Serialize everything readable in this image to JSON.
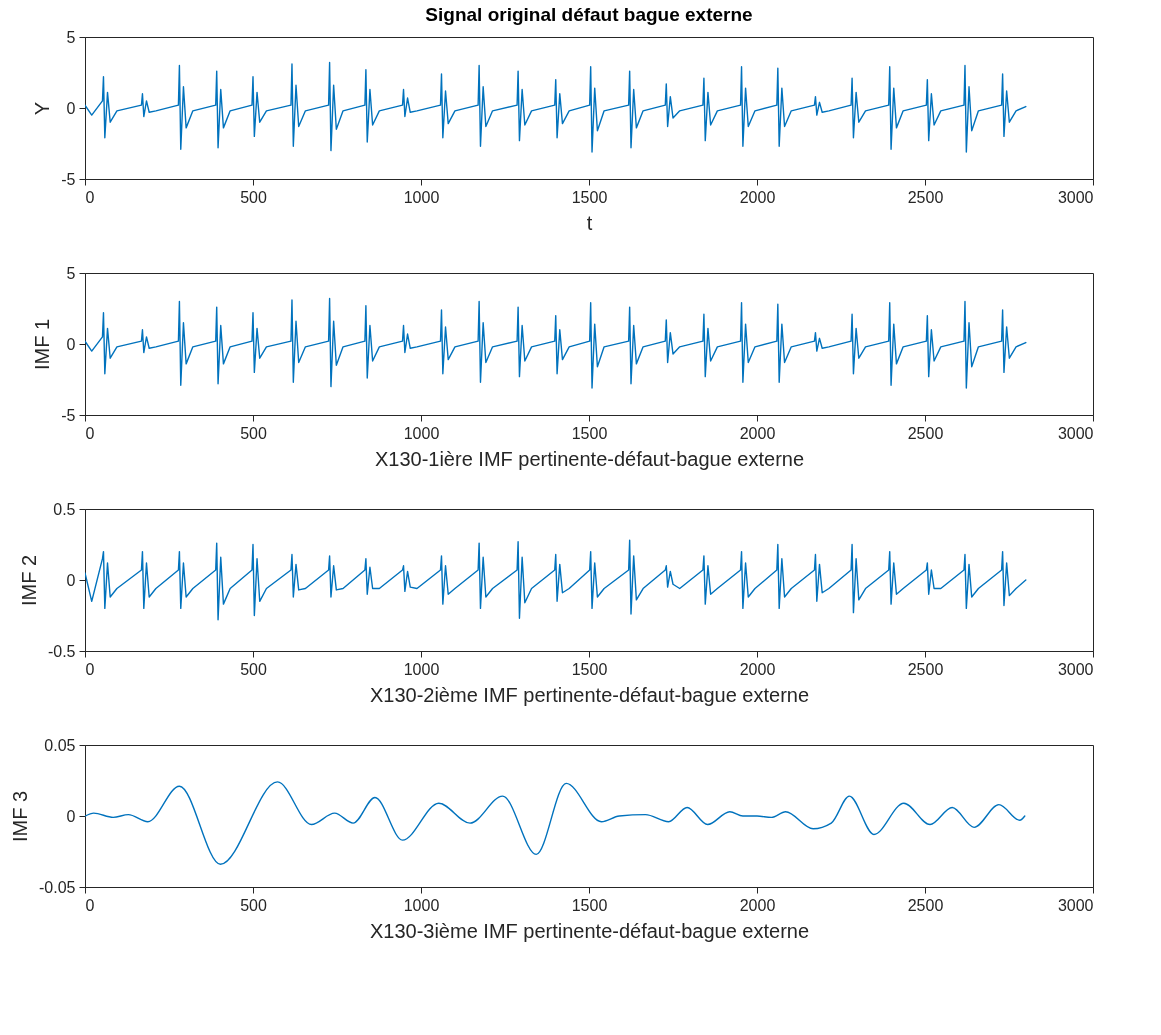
{
  "chart_data": [
    {
      "type": "line",
      "title": "Signal original défaut bague externe",
      "xlabel": "t",
      "ylabel": "Y",
      "xlim": [
        0,
        3000
      ],
      "xticks": [
        0,
        500,
        1000,
        1500,
        2000,
        2500,
        3000
      ],
      "ylim": [
        -5,
        5
      ],
      "yticks": [
        -5,
        0,
        5
      ],
      "x": [
        0,
        20,
        52,
        55,
        59,
        67,
        75,
        95,
        168,
        171,
        175,
        183,
        191,
        211,
        278,
        281,
        285,
        293,
        301,
        321,
        389,
        392,
        396,
        404,
        412,
        432,
        497,
        500,
        504,
        512,
        520,
        540,
        613,
        616,
        620,
        628,
        636,
        656,
        725,
        728,
        732,
        740,
        748,
        768,
        833,
        836,
        840,
        848,
        856,
        876,
        945,
        948,
        952,
        960,
        968,
        988,
        1058,
        1061,
        1065,
        1073,
        1081,
        1101,
        1170,
        1173,
        1177,
        1185,
        1193,
        1213,
        1286,
        1289,
        1293,
        1301,
        1309,
        1329,
        1398,
        1401,
        1405,
        1413,
        1421,
        1441,
        1502,
        1505,
        1509,
        1517,
        1525,
        1545,
        1618,
        1621,
        1625,
        1633,
        1641,
        1661,
        1727,
        1730,
        1734,
        1742,
        1750,
        1770,
        1839,
        1842,
        1846,
        1854,
        1862,
        1882,
        1951,
        1954,
        1958,
        1966,
        1974,
        1994,
        2059,
        2062,
        2066,
        2074,
        2082,
        2102,
        2171,
        2174,
        2178,
        2186,
        2194,
        2214,
        2280,
        2283,
        2287,
        2295,
        2303,
        2323,
        2392,
        2395,
        2399,
        2407,
        2415,
        2435,
        2504,
        2507,
        2511,
        2519,
        2527,
        2547,
        2616,
        2619,
        2623,
        2631,
        2639,
        2659,
        2728,
        2731,
        2735,
        2743,
        2751,
        2771,
        2800
      ],
      "series": [
        {
          "color": "#0072bd",
          "values": [
            0.2,
            -0.5,
            0.5,
            2.2,
            -2.1,
            1.1,
            -1.0,
            -0.2,
            0.2,
            1.0,
            -0.6,
            0.5,
            -0.3,
            -0.2,
            0.2,
            3.0,
            -2.9,
            1.5,
            -1.4,
            -0.2,
            0.2,
            2.6,
            -2.8,
            1.3,
            -1.4,
            -0.2,
            0.2,
            2.2,
            -2.0,
            1.1,
            -1.0,
            -0.2,
            0.2,
            3.1,
            -2.7,
            1.6,
            -1.3,
            -0.2,
            0.2,
            3.2,
            -3.0,
            1.6,
            -1.5,
            -0.2,
            0.2,
            2.7,
            -2.4,
            1.3,
            -1.2,
            -0.2,
            0.2,
            1.3,
            -0.6,
            0.7,
            -0.3,
            -0.2,
            0.2,
            2.4,
            -2.1,
            1.2,
            -1.1,
            -0.2,
            0.2,
            3.0,
            -2.7,
            1.5,
            -1.3,
            -0.2,
            0.2,
            2.6,
            -2.3,
            1.3,
            -1.2,
            -0.2,
            0.2,
            2.0,
            -2.1,
            1.0,
            -1.1,
            -0.2,
            0.2,
            2.9,
            -3.1,
            1.4,
            -1.6,
            -0.2,
            0.2,
            2.6,
            -2.8,
            1.3,
            -1.4,
            -0.2,
            0.2,
            1.7,
            -1.3,
            0.8,
            -0.7,
            -0.2,
            0.2,
            2.1,
            -2.3,
            1.1,
            -1.2,
            -0.2,
            0.2,
            2.9,
            -2.7,
            1.4,
            -1.3,
            -0.2,
            0.2,
            2.8,
            -2.7,
            1.4,
            -1.3,
            -0.2,
            0.2,
            0.8,
            -0.5,
            0.4,
            -0.3,
            -0.2,
            0.2,
            2.1,
            -2.1,
            1.1,
            -1.0,
            -0.2,
            0.2,
            2.9,
            -2.9,
            1.4,
            -1.4,
            -0.2,
            0.2,
            2.0,
            -2.3,
            1.0,
            -1.2,
            -0.2,
            0.2,
            3.0,
            -3.1,
            1.5,
            -1.6,
            -0.2,
            0.2,
            2.4,
            -2.0,
            1.2,
            -1.0,
            -0.2,
            0.1
          ]
        }
      ]
    },
    {
      "type": "line",
      "xlabel": "X130-1ière IMF pertinente-défaut-bague externe",
      "ylabel": "IMF 1",
      "xlim": [
        0,
        3000
      ],
      "xticks": [
        0,
        500,
        1000,
        1500,
        2000,
        2500,
        3000
      ],
      "ylim": [
        -5,
        5
      ],
      "yticks": [
        -5,
        0,
        5
      ],
      "x": [
        0,
        20,
        52,
        55,
        59,
        67,
        75,
        95,
        168,
        171,
        175,
        183,
        191,
        211,
        278,
        281,
        285,
        293,
        301,
        321,
        389,
        392,
        396,
        404,
        412,
        432,
        497,
        500,
        504,
        512,
        520,
        540,
        613,
        616,
        620,
        628,
        636,
        656,
        725,
        728,
        732,
        740,
        748,
        768,
        833,
        836,
        840,
        848,
        856,
        876,
        945,
        948,
        952,
        960,
        968,
        988,
        1058,
        1061,
        1065,
        1073,
        1081,
        1101,
        1170,
        1173,
        1177,
        1185,
        1193,
        1213,
        1286,
        1289,
        1293,
        1301,
        1309,
        1329,
        1398,
        1401,
        1405,
        1413,
        1421,
        1441,
        1502,
        1505,
        1509,
        1517,
        1525,
        1545,
        1618,
        1621,
        1625,
        1633,
        1641,
        1661,
        1727,
        1730,
        1734,
        1742,
        1750,
        1770,
        1839,
        1842,
        1846,
        1854,
        1862,
        1882,
        1951,
        1954,
        1958,
        1966,
        1974,
        1994,
        2059,
        2062,
        2066,
        2074,
        2082,
        2102,
        2171,
        2174,
        2178,
        2186,
        2194,
        2214,
        2280,
        2283,
        2287,
        2295,
        2303,
        2323,
        2392,
        2395,
        2399,
        2407,
        2415,
        2435,
        2504,
        2507,
        2511,
        2519,
        2527,
        2547,
        2616,
        2619,
        2623,
        2631,
        2639,
        2659,
        2728,
        2731,
        2735,
        2743,
        2751,
        2771,
        2800
      ],
      "series": [
        {
          "color": "#0072bd",
          "values": [
            0.2,
            -0.5,
            0.5,
            2.2,
            -2.1,
            1.1,
            -1.0,
            -0.2,
            0.2,
            1.0,
            -0.6,
            0.5,
            -0.3,
            -0.2,
            0.2,
            3.0,
            -2.9,
            1.5,
            -1.4,
            -0.2,
            0.2,
            2.6,
            -2.8,
            1.3,
            -1.4,
            -0.2,
            0.2,
            2.2,
            -2.0,
            1.1,
            -1.0,
            -0.2,
            0.2,
            3.1,
            -2.7,
            1.6,
            -1.3,
            -0.2,
            0.2,
            3.2,
            -3.0,
            1.6,
            -1.5,
            -0.2,
            0.2,
            2.7,
            -2.4,
            1.3,
            -1.2,
            -0.2,
            0.2,
            1.3,
            -0.6,
            0.7,
            -0.3,
            -0.2,
            0.2,
            2.4,
            -2.1,
            1.2,
            -1.1,
            -0.2,
            0.2,
            3.0,
            -2.7,
            1.5,
            -1.3,
            -0.2,
            0.2,
            2.6,
            -2.3,
            1.3,
            -1.2,
            -0.2,
            0.2,
            2.0,
            -2.1,
            1.0,
            -1.1,
            -0.2,
            0.2,
            2.9,
            -3.1,
            1.4,
            -1.6,
            -0.2,
            0.2,
            2.6,
            -2.8,
            1.3,
            -1.4,
            -0.2,
            0.2,
            1.7,
            -1.3,
            0.8,
            -0.7,
            -0.2,
            0.2,
            2.1,
            -2.3,
            1.1,
            -1.2,
            -0.2,
            0.2,
            2.9,
            -2.7,
            1.4,
            -1.3,
            -0.2,
            0.2,
            2.8,
            -2.7,
            1.4,
            -1.3,
            -0.2,
            0.2,
            0.8,
            -0.5,
            0.4,
            -0.3,
            -0.2,
            0.2,
            2.1,
            -2.1,
            1.1,
            -1.0,
            -0.2,
            0.2,
            2.9,
            -2.9,
            1.4,
            -1.4,
            -0.2,
            0.2,
            2.0,
            -2.3,
            1.0,
            -1.2,
            -0.2,
            0.2,
            3.0,
            -3.1,
            1.5,
            -1.6,
            -0.2,
            0.2,
            2.4,
            -2.0,
            1.2,
            -1.0,
            -0.2,
            0.1
          ]
        }
      ]
    },
    {
      "type": "line",
      "xlabel": "X130-2ième IMF pertinente-défaut-bague externe",
      "ylabel": "IMF 2",
      "xlim": [
        0,
        3000
      ],
      "xticks": [
        0,
        500,
        1000,
        1500,
        2000,
        2500,
        3000
      ],
      "ylim": [
        -0.5,
        0.5
      ],
      "yticks": [
        -0.5,
        0,
        0.5
      ],
      "x": [
        0,
        20,
        52,
        55,
        59,
        67,
        75,
        95,
        168,
        171,
        175,
        183,
        191,
        211,
        278,
        281,
        285,
        293,
        301,
        321,
        389,
        392,
        396,
        404,
        412,
        432,
        497,
        500,
        504,
        512,
        520,
        540,
        613,
        616,
        620,
        628,
        636,
        656,
        725,
        728,
        732,
        740,
        748,
        768,
        833,
        836,
        840,
        848,
        856,
        876,
        945,
        948,
        952,
        960,
        968,
        988,
        1058,
        1061,
        1065,
        1073,
        1081,
        1101,
        1170,
        1173,
        1177,
        1185,
        1193,
        1213,
        1286,
        1289,
        1293,
        1301,
        1309,
        1329,
        1398,
        1401,
        1405,
        1413,
        1421,
        1441,
        1502,
        1505,
        1509,
        1517,
        1525,
        1545,
        1618,
        1621,
        1625,
        1633,
        1641,
        1661,
        1727,
        1730,
        1734,
        1742,
        1750,
        1770,
        1839,
        1842,
        1846,
        1854,
        1862,
        1882,
        1951,
        1954,
        1958,
        1966,
        1974,
        1994,
        2059,
        2062,
        2066,
        2074,
        2082,
        2102,
        2171,
        2174,
        2178,
        2186,
        2194,
        2214,
        2280,
        2283,
        2287,
        2295,
        2303,
        2323,
        2392,
        2395,
        2399,
        2407,
        2415,
        2435,
        2504,
        2507,
        2511,
        2519,
        2527,
        2547,
        2616,
        2619,
        2623,
        2631,
        2639,
        2659,
        2728,
        2731,
        2735,
        2743,
        2751,
        2771,
        2800
      ],
      "series": [
        {
          "color": "#0072bd",
          "values": [
            0.05,
            -0.15,
            0.15,
            0.2,
            -0.2,
            0.12,
            -0.12,
            -0.06,
            0.07,
            0.2,
            -0.2,
            0.12,
            -0.12,
            -0.06,
            0.07,
            0.2,
            -0.2,
            0.12,
            -0.12,
            -0.06,
            0.07,
            0.26,
            -0.28,
            0.16,
            -0.17,
            -0.06,
            0.07,
            0.25,
            -0.25,
            0.15,
            -0.15,
            -0.06,
            0.07,
            0.18,
            -0.12,
            0.11,
            -0.07,
            -0.06,
            0.07,
            0.17,
            -0.12,
            0.1,
            -0.07,
            -0.06,
            0.07,
            0.15,
            -0.1,
            0.09,
            -0.06,
            -0.06,
            0.07,
            0.1,
            -0.08,
            0.06,
            -0.05,
            -0.06,
            0.07,
            0.17,
            -0.17,
            0.1,
            -0.1,
            -0.06,
            0.07,
            0.26,
            -0.2,
            0.16,
            -0.12,
            -0.06,
            0.07,
            0.27,
            -0.27,
            0.16,
            -0.16,
            -0.06,
            0.07,
            0.18,
            -0.15,
            0.11,
            -0.09,
            -0.06,
            0.07,
            0.2,
            -0.2,
            0.12,
            -0.12,
            -0.06,
            0.07,
            0.28,
            -0.24,
            0.17,
            -0.14,
            -0.06,
            0.07,
            0.1,
            -0.05,
            0.06,
            -0.03,
            -0.06,
            0.07,
            0.17,
            -0.17,
            0.1,
            -0.1,
            -0.06,
            0.07,
            0.2,
            -0.2,
            0.12,
            -0.12,
            -0.06,
            0.07,
            0.25,
            -0.2,
            0.15,
            -0.12,
            -0.06,
            0.07,
            0.18,
            -0.15,
            0.11,
            -0.09,
            -0.06,
            0.07,
            0.25,
            -0.23,
            0.15,
            -0.14,
            -0.06,
            0.07,
            0.2,
            -0.17,
            0.12,
            -0.1,
            -0.06,
            0.07,
            0.12,
            -0.1,
            0.07,
            -0.06,
            -0.06,
            0.07,
            0.18,
            -0.2,
            0.11,
            -0.12,
            -0.06,
            0.07,
            0.2,
            -0.18,
            0.12,
            -0.11,
            -0.06,
            0.0
          ]
        }
      ]
    },
    {
      "type": "line",
      "xlabel": "X130-3ième IMF pertinente-défaut-bague externe",
      "ylabel": "IMF 3",
      "xlim": [
        0,
        3000
      ],
      "xticks": [
        0,
        500,
        1000,
        1500,
        2000,
        2500,
        3000
      ],
      "ylim": [
        -0.05,
        0.05
      ],
      "yticks": [
        -0.05,
        0,
        0.05
      ],
      "x": [
        1,
        26,
        84,
        129,
        187,
        281,
        403,
        573,
        674,
        743,
        798,
        863,
        945,
        1053,
        1146,
        1243,
        1343,
        1432,
        1537,
        1590,
        1668,
        1737,
        1792,
        1853,
        1919,
        1958,
        2000,
        2043,
        2085,
        2167,
        2221,
        2275,
        2348,
        2437,
        2515,
        2581,
        2646,
        2720,
        2782,
        2797
      ],
      "series": [
        {
          "color": "#0072bd",
          "values": [
            0,
            0.002,
            -0.001,
            0.001,
            -0.004,
            0.021,
            -0.034,
            0.024,
            -0.006,
            0.002,
            -0.005,
            0.013,
            -0.017,
            0.009,
            -0.005,
            0.014,
            -0.027,
            0.023,
            -0.004,
            0,
            0.001,
            -0.004,
            0.006,
            -0.006,
            0.003,
            0,
            0,
            -0.001,
            0.003,
            -0.009,
            -0.005,
            0.014,
            -0.013,
            0.009,
            -0.006,
            0.006,
            -0.008,
            0.008,
            -0.003,
            0
          ]
        }
      ]
    }
  ]
}
